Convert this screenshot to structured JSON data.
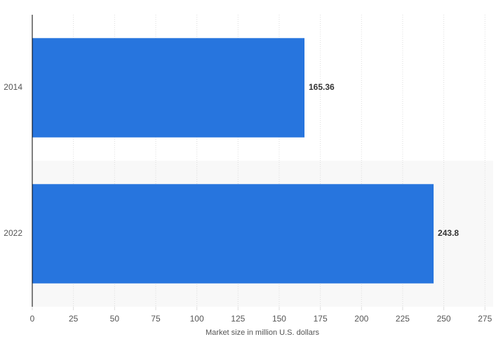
{
  "chart_data": {
    "type": "bar",
    "orientation": "horizontal",
    "categories": [
      "2014",
      "2022"
    ],
    "values": [
      165.36,
      243.8
    ],
    "color": "#2775de",
    "xlabel": "Market size in million U.S. dollars",
    "xlim": [
      0,
      280
    ],
    "xticks": [
      0,
      25,
      50,
      75,
      100,
      125,
      150,
      175,
      200,
      225,
      250,
      275
    ],
    "grid": true
  }
}
